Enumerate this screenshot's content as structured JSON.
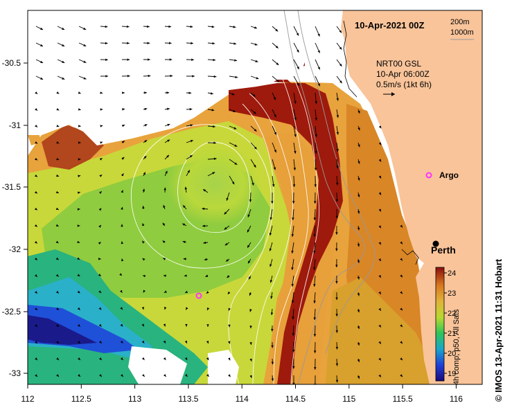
{
  "map": {
    "title": "10-Apr-2021 00Z",
    "depth_legend": [
      "200m",
      "1000m"
    ],
    "current_info": [
      "NRT00 GSL",
      "10-Apr 06:00Z",
      "0.5m/s (1kt 6h)"
    ],
    "x_ticks": [
      "112",
      "112.5",
      "113",
      "113.5",
      "114",
      "114.5",
      "115",
      "115.5",
      "116"
    ],
    "y_ticks": [
      "-30.5",
      "-31",
      "-31.5",
      "-32",
      "-32.5",
      "-33"
    ],
    "places": [
      {
        "name": "Perth"
      }
    ],
    "argo": {
      "label": "Argo",
      "color": "#ff33ff"
    },
    "land_color": "#f9c49a"
  },
  "colorbar": {
    "ticks": [
      "24",
      "23",
      "22",
      "21",
      "20",
      "19"
    ],
    "label": "4h comp, p50, All Sats"
  },
  "credit": "© IMOS 13-Apr-2021 11:31 Hobart"
}
